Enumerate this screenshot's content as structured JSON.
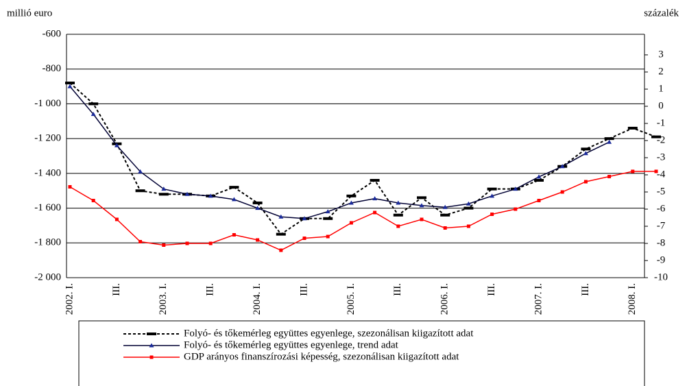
{
  "chart_data": {
    "type": "line",
    "y_label": "millió euro",
    "y2_label": "százalék",
    "categories": [
      "2002. I.",
      null,
      "III.",
      null,
      "2003. I.",
      null,
      "III.",
      null,
      "2004. I.",
      null,
      "III.",
      null,
      "2005. I.",
      null,
      "III.",
      null,
      "2006. I.",
      null,
      "III.",
      null,
      "2007. I.",
      null,
      "III.",
      null,
      "2008. I.",
      null
    ],
    "series": [
      {
        "name": "Folyó- és tőkemérleg együttes egyenlege, szezonálisan kiigazított adat",
        "color": "#000000",
        "dash": true,
        "marker": "dash",
        "values": [
          -880,
          -1000,
          -1230,
          -1500,
          -1520,
          -1520,
          -1530,
          -1480,
          -1570,
          -1750,
          -1660,
          -1660,
          -1530,
          -1440,
          -1640,
          -1540,
          -1640,
          -1600,
          -1490,
          -1490,
          -1440,
          -1360,
          -1260,
          -1200,
          -1140,
          -1190
        ]
      },
      {
        "name": "Folyó- és tőkemérleg együttes egyenlege, trend adat",
        "color": "#000033",
        "dash": false,
        "marker": "triangle",
        "values": [
          -900,
          -1060,
          -1240,
          -1390,
          -1490,
          -1520,
          -1530,
          -1550,
          -1600,
          -1650,
          -1660,
          -1620,
          -1570,
          -1545,
          -1570,
          -1585,
          -1595,
          -1575,
          -1530,
          -1490,
          -1420,
          -1360,
          -1285,
          -1220,
          null,
          null
        ]
      },
      {
        "name": "GDP arányos finanszírozási képesség, szezonálisan kiigazított adat",
        "color": "#ff0000",
        "dash": false,
        "marker": "square",
        "axis": "y2",
        "values": [
          -4.7,
          -5.5,
          -6.6,
          -7.9,
          -8.1,
          -8.0,
          -8.0,
          -7.5,
          -7.8,
          -8.4,
          -7.7,
          -7.6,
          -6.8,
          -6.2,
          -7.0,
          -6.6,
          -7.1,
          -7.0,
          -6.3,
          -6.0,
          -5.5,
          -5.0,
          -4.4,
          -4.1,
          -3.8,
          -3.8
        ]
      }
    ],
    "ylim": [
      -2000,
      -600
    ],
    "yticks": [
      {
        "value": -2000,
        "label": "-2 000"
      },
      {
        "value": -1800,
        "label": "-1 800"
      },
      {
        "value": -1600,
        "label": "-1 600"
      },
      {
        "value": -1400,
        "label": "-1 400"
      },
      {
        "value": -1200,
        "label": "-1 200"
      },
      {
        "value": -1000,
        "label": "-1 000"
      },
      -800,
      -600
    ],
    "y2lim": [
      -10,
      4.2
    ],
    "y2ticks": [
      -10,
      -9,
      -8,
      -7,
      -6,
      -5,
      -4,
      -3,
      -2,
      -1,
      0,
      1,
      2,
      3
    ],
    "grid": true,
    "legend": "bottom"
  }
}
